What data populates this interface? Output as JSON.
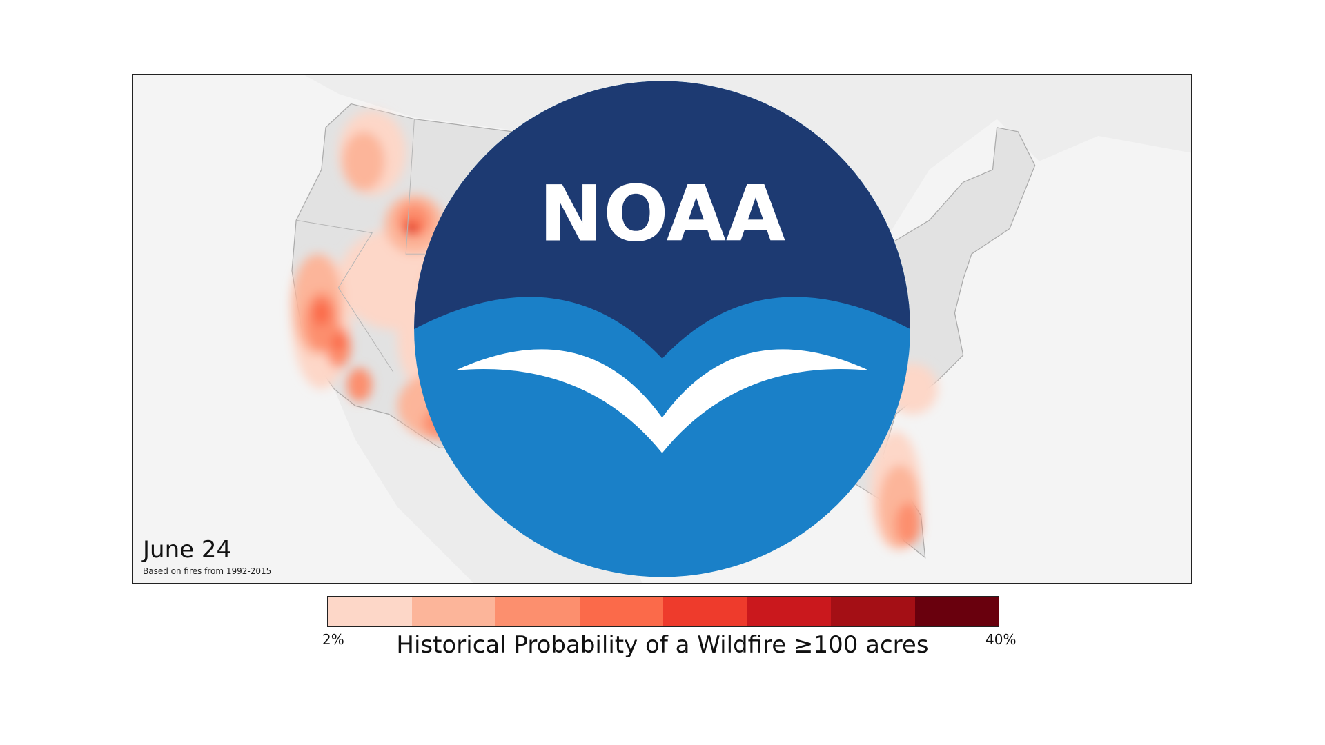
{
  "map": {
    "date": "June 24",
    "subtitle": "Based on fires from 1992-2015",
    "logo_text": "NOAA",
    "background": "#f4f4f4",
    "land_color": "#e2e2e2"
  },
  "legend": {
    "title": "Historical Probability of a Wildfire ≥100 acres",
    "min_label": "2%",
    "max_label": "40%",
    "colors": [
      "#fdd7c8",
      "#fcb59a",
      "#fc8f6e",
      "#fb6a4a",
      "#ee3b2c",
      "#ca181d",
      "#a40f15",
      "#69000d"
    ]
  }
}
